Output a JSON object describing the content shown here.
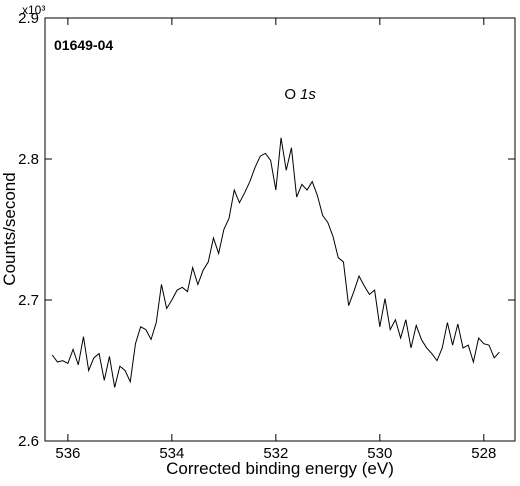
{
  "chart_data": {
    "type": "line",
    "sample_label": "01649-04",
    "peak_label": {
      "element": "O",
      "orbital": "1s"
    },
    "x_label": "Corrected binding energy (eV)",
    "y_label": "Counts/second",
    "y_multiplier": "x10³",
    "x": [
      536.3,
      536.2,
      536.1,
      536.0,
      535.9,
      535.8,
      535.7,
      535.6,
      535.5,
      535.4,
      535.3,
      535.2,
      535.1,
      535.0,
      534.9,
      534.8,
      534.7,
      534.6,
      534.5,
      534.4,
      534.3,
      534.2,
      534.1,
      534.0,
      533.9,
      533.8,
      533.7,
      533.6,
      533.5,
      533.4,
      533.3,
      533.2,
      533.1,
      533.0,
      532.9,
      532.8,
      532.7,
      532.6,
      532.5,
      532.4,
      532.3,
      532.2,
      532.1,
      532.0,
      531.9,
      531.8,
      531.7,
      531.6,
      531.5,
      531.4,
      531.3,
      531.2,
      531.1,
      531.0,
      530.9,
      530.8,
      530.7,
      530.6,
      530.5,
      530.4,
      530.3,
      530.2,
      530.1,
      530.0,
      529.9,
      529.8,
      529.7,
      529.6,
      529.5,
      529.4,
      529.3,
      529.2,
      529.1,
      529.0,
      528.9,
      528.8,
      528.7,
      528.6,
      528.5,
      528.4,
      528.3,
      528.2,
      528.1,
      528.0,
      527.9,
      527.8,
      527.7
    ],
    "series": [
      {
        "color": "#000000",
        "values": [
          2.661,
          2.656,
          2.657,
          2.655,
          2.665,
          2.654,
          2.674,
          2.65,
          2.659,
          2.662,
          2.643,
          2.66,
          2.638,
          2.653,
          2.65,
          2.642,
          2.669,
          2.681,
          2.679,
          2.672,
          2.684,
          2.711,
          2.694,
          2.7,
          2.707,
          2.709,
          2.706,
          2.723,
          2.711,
          2.721,
          2.727,
          2.744,
          2.733,
          2.75,
          2.758,
          2.778,
          2.769,
          2.776,
          2.784,
          2.794,
          2.802,
          2.804,
          2.799,
          2.778,
          2.815,
          2.792,
          2.808,
          2.773,
          2.782,
          2.778,
          2.784,
          2.774,
          2.76,
          2.755,
          2.745,
          2.73,
          2.727,
          2.696,
          2.706,
          2.717,
          2.71,
          2.704,
          2.707,
          2.681,
          2.701,
          2.679,
          2.686,
          2.673,
          2.686,
          2.666,
          2.682,
          2.672,
          2.666,
          2.662,
          2.657,
          2.666,
          2.684,
          2.668,
          2.683,
          2.666,
          2.668,
          2.656,
          2.673,
          2.669,
          2.668,
          2.659,
          2.663
        ]
      }
    ],
    "xlim": [
      536.44,
      527.4
    ],
    "xticks": [
      536,
      534,
      532,
      530,
      528
    ],
    "ylim": [
      2.6,
      2.9
    ],
    "yticks": [
      2.6,
      2.7,
      2.8,
      2.9
    ]
  }
}
